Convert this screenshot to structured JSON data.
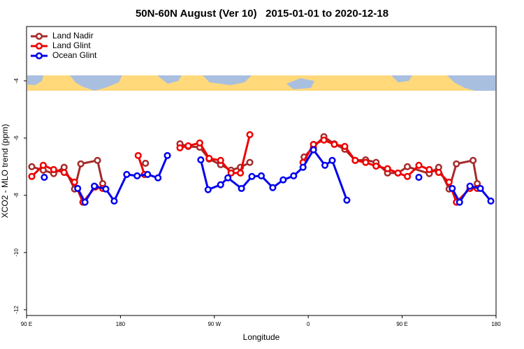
{
  "chart_data": {
    "type": "line",
    "title": "50N-60N August (Ver 10)   2015-01-01 to 2020-12-18",
    "x_label": "Longitude",
    "y_label": "XCO2 - MLO trend (ppm)",
    "xlim": [
      90,
      540
    ],
    "xticks": [
      {
        "value": 90,
        "label": "90 E"
      },
      180,
      {
        "value": 270,
        "label": "90 W"
      },
      {
        "value": 360,
        "label": "0"
      },
      {
        "value": 450,
        "label": "90 E"
      },
      {
        "value": 540,
        "label": "180"
      }
    ],
    "ylim": [
      -12.2,
      -2.1
    ],
    "yticks": [
      -4,
      -6,
      -8,
      -10,
      -12
    ],
    "legend": "top-left",
    "series": [
      {
        "name": "Land Nadir",
        "color": "#a52a2a",
        "x": [
          95,
          106,
          116,
          126,
          136,
          142,
          158,
          163,
          null,
          204,
          null,
          237,
          245,
          256,
          265,
          276,
          286,
          295,
          304,
          null,
          356,
          365,
          375,
          385,
          395,
          405,
          415,
          425,
          436,
          446,
          455,
          476,
          485,
          495,
          502,
          518,
          522
        ],
        "values": [
          -7.0,
          -7.12,
          -7.24,
          -7.02,
          -7.78,
          -6.9,
          -6.78,
          -7.59,
          null,
          -6.88,
          null,
          -6.2,
          -6.29,
          -6.32,
          -6.73,
          -6.93,
          -7.12,
          -7.02,
          -6.85,
          null,
          -6.66,
          -6.32,
          -5.95,
          -6.2,
          -6.39,
          -6.78,
          -6.76,
          -6.85,
          -7.22,
          -7.22,
          -7.0,
          -7.24,
          -7.02,
          -7.78,
          -6.9,
          -6.78,
          -7.59
        ]
      },
      {
        "name": "Land Glint",
        "color": "#ee0000",
        "x": [
          95,
          106,
          116,
          126,
          136,
          144,
          156,
          163,
          null,
          197,
          203,
          null,
          237,
          245,
          256,
          265,
          276,
          286,
          295,
          304,
          null,
          355,
          365,
          375,
          385,
          395,
          405,
          415,
          425,
          436,
          446,
          455,
          466,
          476,
          485,
          495,
          502,
          515,
          522
        ],
        "values": [
          -7.34,
          -6.95,
          -7.1,
          -7.2,
          -7.54,
          -8.24,
          -7.71,
          -7.76,
          null,
          -6.61,
          -7.27,
          null,
          -6.34,
          -6.27,
          -6.17,
          -6.71,
          -6.78,
          -7.22,
          -7.22,
          -5.88,
          null,
          -6.85,
          -6.22,
          -6.07,
          -6.22,
          -6.29,
          -6.78,
          -6.85,
          -6.98,
          -7.07,
          -7.22,
          -7.34,
          -6.95,
          -7.1,
          -7.2,
          -7.54,
          -8.24,
          -7.76,
          -7.76
        ]
      },
      {
        "name": "Ocean Glint",
        "color": "#0000ee",
        "x": [
          107,
          null,
          139,
          146,
          155,
          166,
          174,
          186,
          196,
          206,
          216,
          225,
          null,
          257,
          264,
          276,
          283,
          296,
          306,
          315,
          326,
          336,
          346,
          355,
          365,
          376,
          383,
          397,
          null,
          466,
          null,
          498,
          505,
          515,
          525,
          535
        ],
        "values": [
          -7.37,
          null,
          -7.76,
          -8.24,
          -7.68,
          -7.78,
          -8.2,
          -7.27,
          -7.32,
          -7.27,
          -7.39,
          -6.61,
          null,
          -6.76,
          -7.8,
          -7.63,
          -7.39,
          -7.76,
          -7.34,
          -7.32,
          -7.73,
          -7.46,
          -7.32,
          -7.02,
          -6.41,
          -6.95,
          -6.78,
          -8.17,
          null,
          -7.37,
          null,
          -7.76,
          -8.24,
          -7.68,
          -7.76,
          -8.2
        ]
      }
    ]
  }
}
